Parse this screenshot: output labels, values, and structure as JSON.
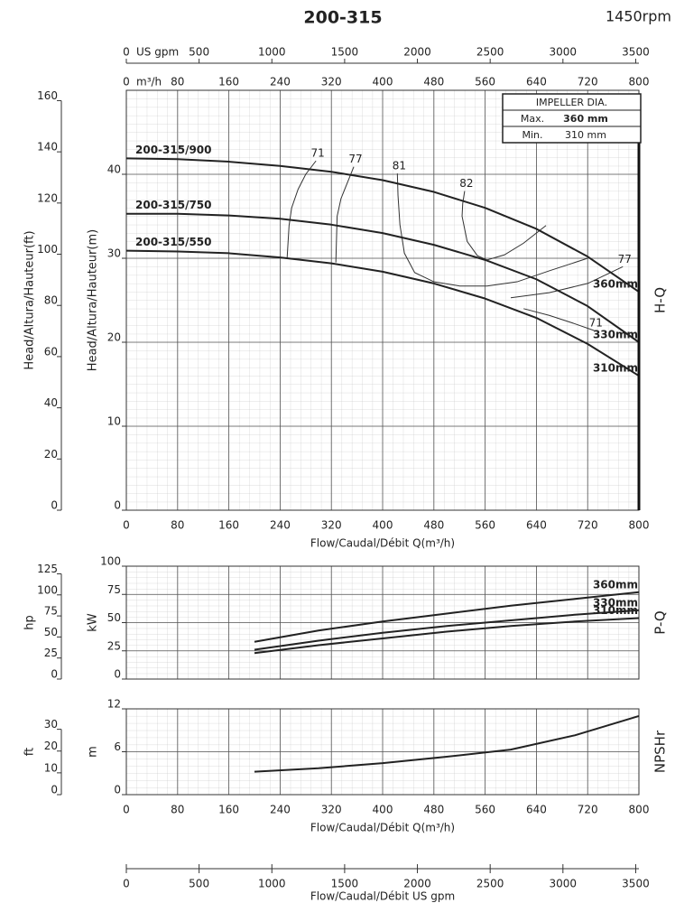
{
  "chart_data": [
    {
      "type": "line",
      "title": "200-315",
      "subtitle": "1450rpm",
      "side_label": "H-Q",
      "xlabel": "Flow/Caudal/Débit Q(m³/h)",
      "xunit": "m³/h",
      "x2unit": "US gpm",
      "ylabel": "Head/Altura/Hauteur(m)",
      "y2label": "Head/Altura/Hauteur(ft)",
      "xlim": [
        0,
        800
      ],
      "xticks": [
        0,
        80,
        160,
        240,
        320,
        400,
        480,
        560,
        640,
        720,
        800
      ],
      "x2lim": [
        0,
        3522
      ],
      "x2ticks": [
        0,
        500,
        1000,
        1500,
        2000,
        2500,
        3000,
        3500
      ],
      "ylim": [
        0,
        50
      ],
      "yticks": [
        0,
        10,
        20,
        30,
        40
      ],
      "y2lim": [
        0,
        164.04
      ],
      "y2ticks": [
        0,
        20,
        40,
        60,
        80,
        100,
        120,
        140,
        160
      ],
      "grid": true,
      "x": [
        0,
        80,
        160,
        240,
        320,
        400,
        480,
        560,
        640,
        720,
        800
      ],
      "series": [
        {
          "name": "200-315/900",
          "end_label": "360mm",
          "color": "#222222",
          "values": [
            41.9,
            41.8,
            41.5,
            41.0,
            40.3,
            39.3,
            37.9,
            36.0,
            33.5,
            30.2,
            26.0
          ]
        },
        {
          "name": "200-315/750",
          "end_label": "330mm",
          "color": "#222222",
          "values": [
            35.3,
            35.3,
            35.1,
            34.7,
            34.0,
            33.0,
            31.6,
            29.8,
            27.5,
            24.3,
            20.0
          ]
        },
        {
          "name": "200-315/550",
          "end_label": "310mm",
          "color": "#222222",
          "values": [
            30.9,
            30.8,
            30.6,
            30.1,
            29.4,
            28.4,
            27.0,
            25.2,
            22.9,
            19.8,
            16.0
          ]
        }
      ],
      "efficiency": [
        {
          "label": "71",
          "x": [
            296,
            280,
            268,
            258,
            254,
            251
          ],
          "values": [
            41.6,
            40.0,
            38.2,
            36.0,
            33.9,
            30.1
          ]
        },
        {
          "label": "77",
          "x": [
            355,
            345,
            335,
            329,
            327
          ],
          "values": [
            40.9,
            39.0,
            37.1,
            35.0,
            29.5
          ]
        },
        {
          "label": "81",
          "x": [
            423,
            424,
            427,
            434,
            450,
            480,
            520,
            563,
            610,
            660,
            720
          ],
          "values": [
            40.1,
            37.5,
            34.0,
            30.6,
            28.3,
            27.2,
            26.7,
            26.7,
            27.2,
            28.5,
            30.0
          ]
        },
        {
          "label": "82",
          "x": [
            528,
            525,
            524,
            532,
            548,
            563,
            590,
            620,
            655
          ],
          "values": [
            38.0,
            36.5,
            35.0,
            32.0,
            30.3,
            29.8,
            30.4,
            31.8,
            33.9
          ]
        },
        {
          "label": "77",
          "x": [
            775,
            720,
            660,
            600
          ],
          "values": [
            29.0,
            27.0,
            25.9,
            25.3
          ]
        },
        {
          "label": "71",
          "x": [
            730,
            700,
            660,
            620
          ],
          "values": [
            21.4,
            22.2,
            23.2,
            24.0
          ]
        }
      ],
      "impeller": {
        "title": "IMPELLER DIA.",
        "rows": [
          [
            "Max.",
            "360 mm"
          ],
          [
            "Min.",
            "310 mm"
          ]
        ]
      }
    },
    {
      "type": "line",
      "side_label": "P-Q",
      "ylabel": "kW",
      "y2label": "hp",
      "xlim": [
        0,
        800
      ],
      "xticks": [
        0,
        80,
        160,
        240,
        320,
        400,
        480,
        560,
        640,
        720,
        800
      ],
      "ylim": [
        0,
        100
      ],
      "yticks": [
        0,
        25,
        50,
        75,
        100
      ],
      "y2lim": [
        0,
        134.1
      ],
      "y2ticks": [
        0,
        25,
        50,
        75,
        100,
        125
      ],
      "grid": true,
      "x": [
        200,
        300,
        400,
        500,
        600,
        700,
        800
      ],
      "series": [
        {
          "name": "360mm",
          "color": "#222222",
          "values": [
            33,
            43,
            51,
            58,
            65,
            71,
            77
          ]
        },
        {
          "name": "330mm",
          "color": "#222222",
          "values": [
            26,
            34,
            41,
            47,
            52,
            57,
            61
          ]
        },
        {
          "name": "310mm",
          "color": "#222222",
          "values": [
            23,
            30,
            36,
            42,
            47,
            51,
            54
          ]
        }
      ]
    },
    {
      "type": "line",
      "side_label": "NPSHr",
      "ylabel": "m",
      "y2label": "ft",
      "xlabel": "Flow/Caudal/Débit Q(m³/h)",
      "x2label": "Flow/Caudal/Débit  US gpm",
      "xlim": [
        0,
        800
      ],
      "xticks": [
        0,
        80,
        160,
        240,
        320,
        400,
        480,
        560,
        640,
        720,
        800
      ],
      "x2lim": [
        0,
        3522
      ],
      "x2ticks": [
        0,
        500,
        1000,
        1500,
        2000,
        2500,
        3000,
        3500
      ],
      "ylim": [
        0,
        12
      ],
      "yticks": [
        0,
        6,
        12
      ],
      "y2lim": [
        0,
        39.37
      ],
      "y2ticks": [
        0,
        10,
        20,
        30
      ],
      "grid": true,
      "x": [
        200,
        300,
        400,
        500,
        600,
        700,
        800
      ],
      "series": [
        {
          "color": "#222222",
          "values": [
            3.2,
            3.7,
            4.4,
            5.3,
            6.3,
            8.3,
            11.0
          ]
        }
      ]
    }
  ]
}
